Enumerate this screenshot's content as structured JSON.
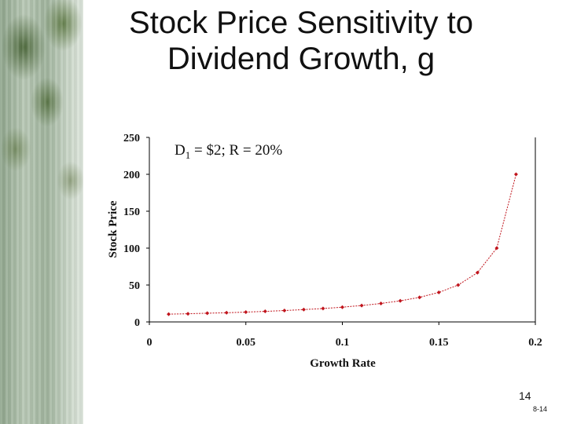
{
  "slide": {
    "title_line1": "Stock Price Sensitivity to",
    "title_line2": "Dividend Growth, g",
    "page_number": "14",
    "slide_code": "8-14"
  },
  "chart_data": {
    "type": "line",
    "xlabel": "Growth Rate",
    "ylabel": "Stock Price",
    "annotation": {
      "main": "D",
      "sub": "1",
      "rest": " = $2; R = 20%"
    },
    "xlim": [
      0,
      0.2
    ],
    "ylim": [
      0,
      250
    ],
    "x_ticks": [
      0,
      0.05,
      0.1,
      0.15,
      0.2
    ],
    "x_tick_labels": [
      "0",
      "0.05",
      "0.1",
      "0.15",
      "0.2"
    ],
    "y_ticks": [
      0,
      50,
      100,
      150,
      200,
      250
    ],
    "y_tick_labels": [
      "0",
      "50",
      "100",
      "150",
      "200",
      "250"
    ],
    "grid": false,
    "series": [
      {
        "color": "#c0141c",
        "x": [
          0.01,
          0.02,
          0.03,
          0.04,
          0.05,
          0.06,
          0.07,
          0.08,
          0.09,
          0.1,
          0.11,
          0.12,
          0.13,
          0.14,
          0.15,
          0.16,
          0.17,
          0.18,
          0.19
        ],
        "y": [
          10.5,
          11.1,
          11.8,
          12.5,
          13.3,
          14.3,
          15.4,
          16.7,
          18.2,
          20.0,
          22.2,
          25.0,
          28.6,
          33.3,
          40.0,
          50.0,
          66.7,
          100.0,
          200.0
        ]
      }
    ]
  }
}
